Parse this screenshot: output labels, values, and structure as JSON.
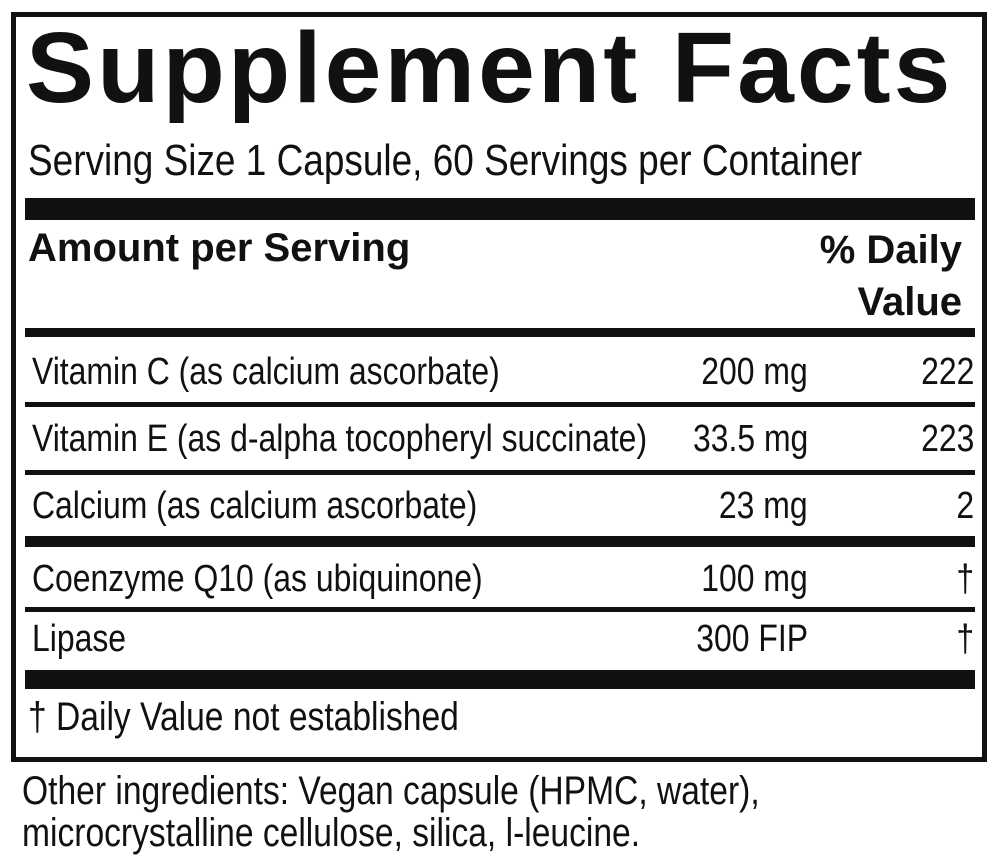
{
  "label": {
    "title": "Supplement Facts",
    "serving": "Serving Size 1 Capsule, 60 Servings per Container",
    "header": {
      "amount": "Amount per Serving",
      "dv_line1": "% Daily",
      "dv_line2": "Value"
    },
    "rows": [
      {
        "name": "Vitamin C (as calcium ascorbate)",
        "amount": "200 mg",
        "dv": "222"
      },
      {
        "name": "Vitamin E (as d-alpha tocopheryl succinate)",
        "amount": "33.5 mg",
        "dv": "223"
      },
      {
        "name": "Calcium (as calcium ascorbate)",
        "amount": "23 mg",
        "dv": "2"
      },
      {
        "name": "Coenzyme Q10 (as ubiquinone)",
        "amount": "100 mg",
        "dv": "†"
      },
      {
        "name": "Lipase",
        "amount": "300 FIP",
        "dv": "†"
      }
    ],
    "footnote": "† Daily Value not established"
  },
  "other_ingredients": {
    "line1": "Other ingredients: Vegan capsule (HPMC, water),",
    "line2": "microcrystalline cellulose, silica, l-leucine."
  }
}
